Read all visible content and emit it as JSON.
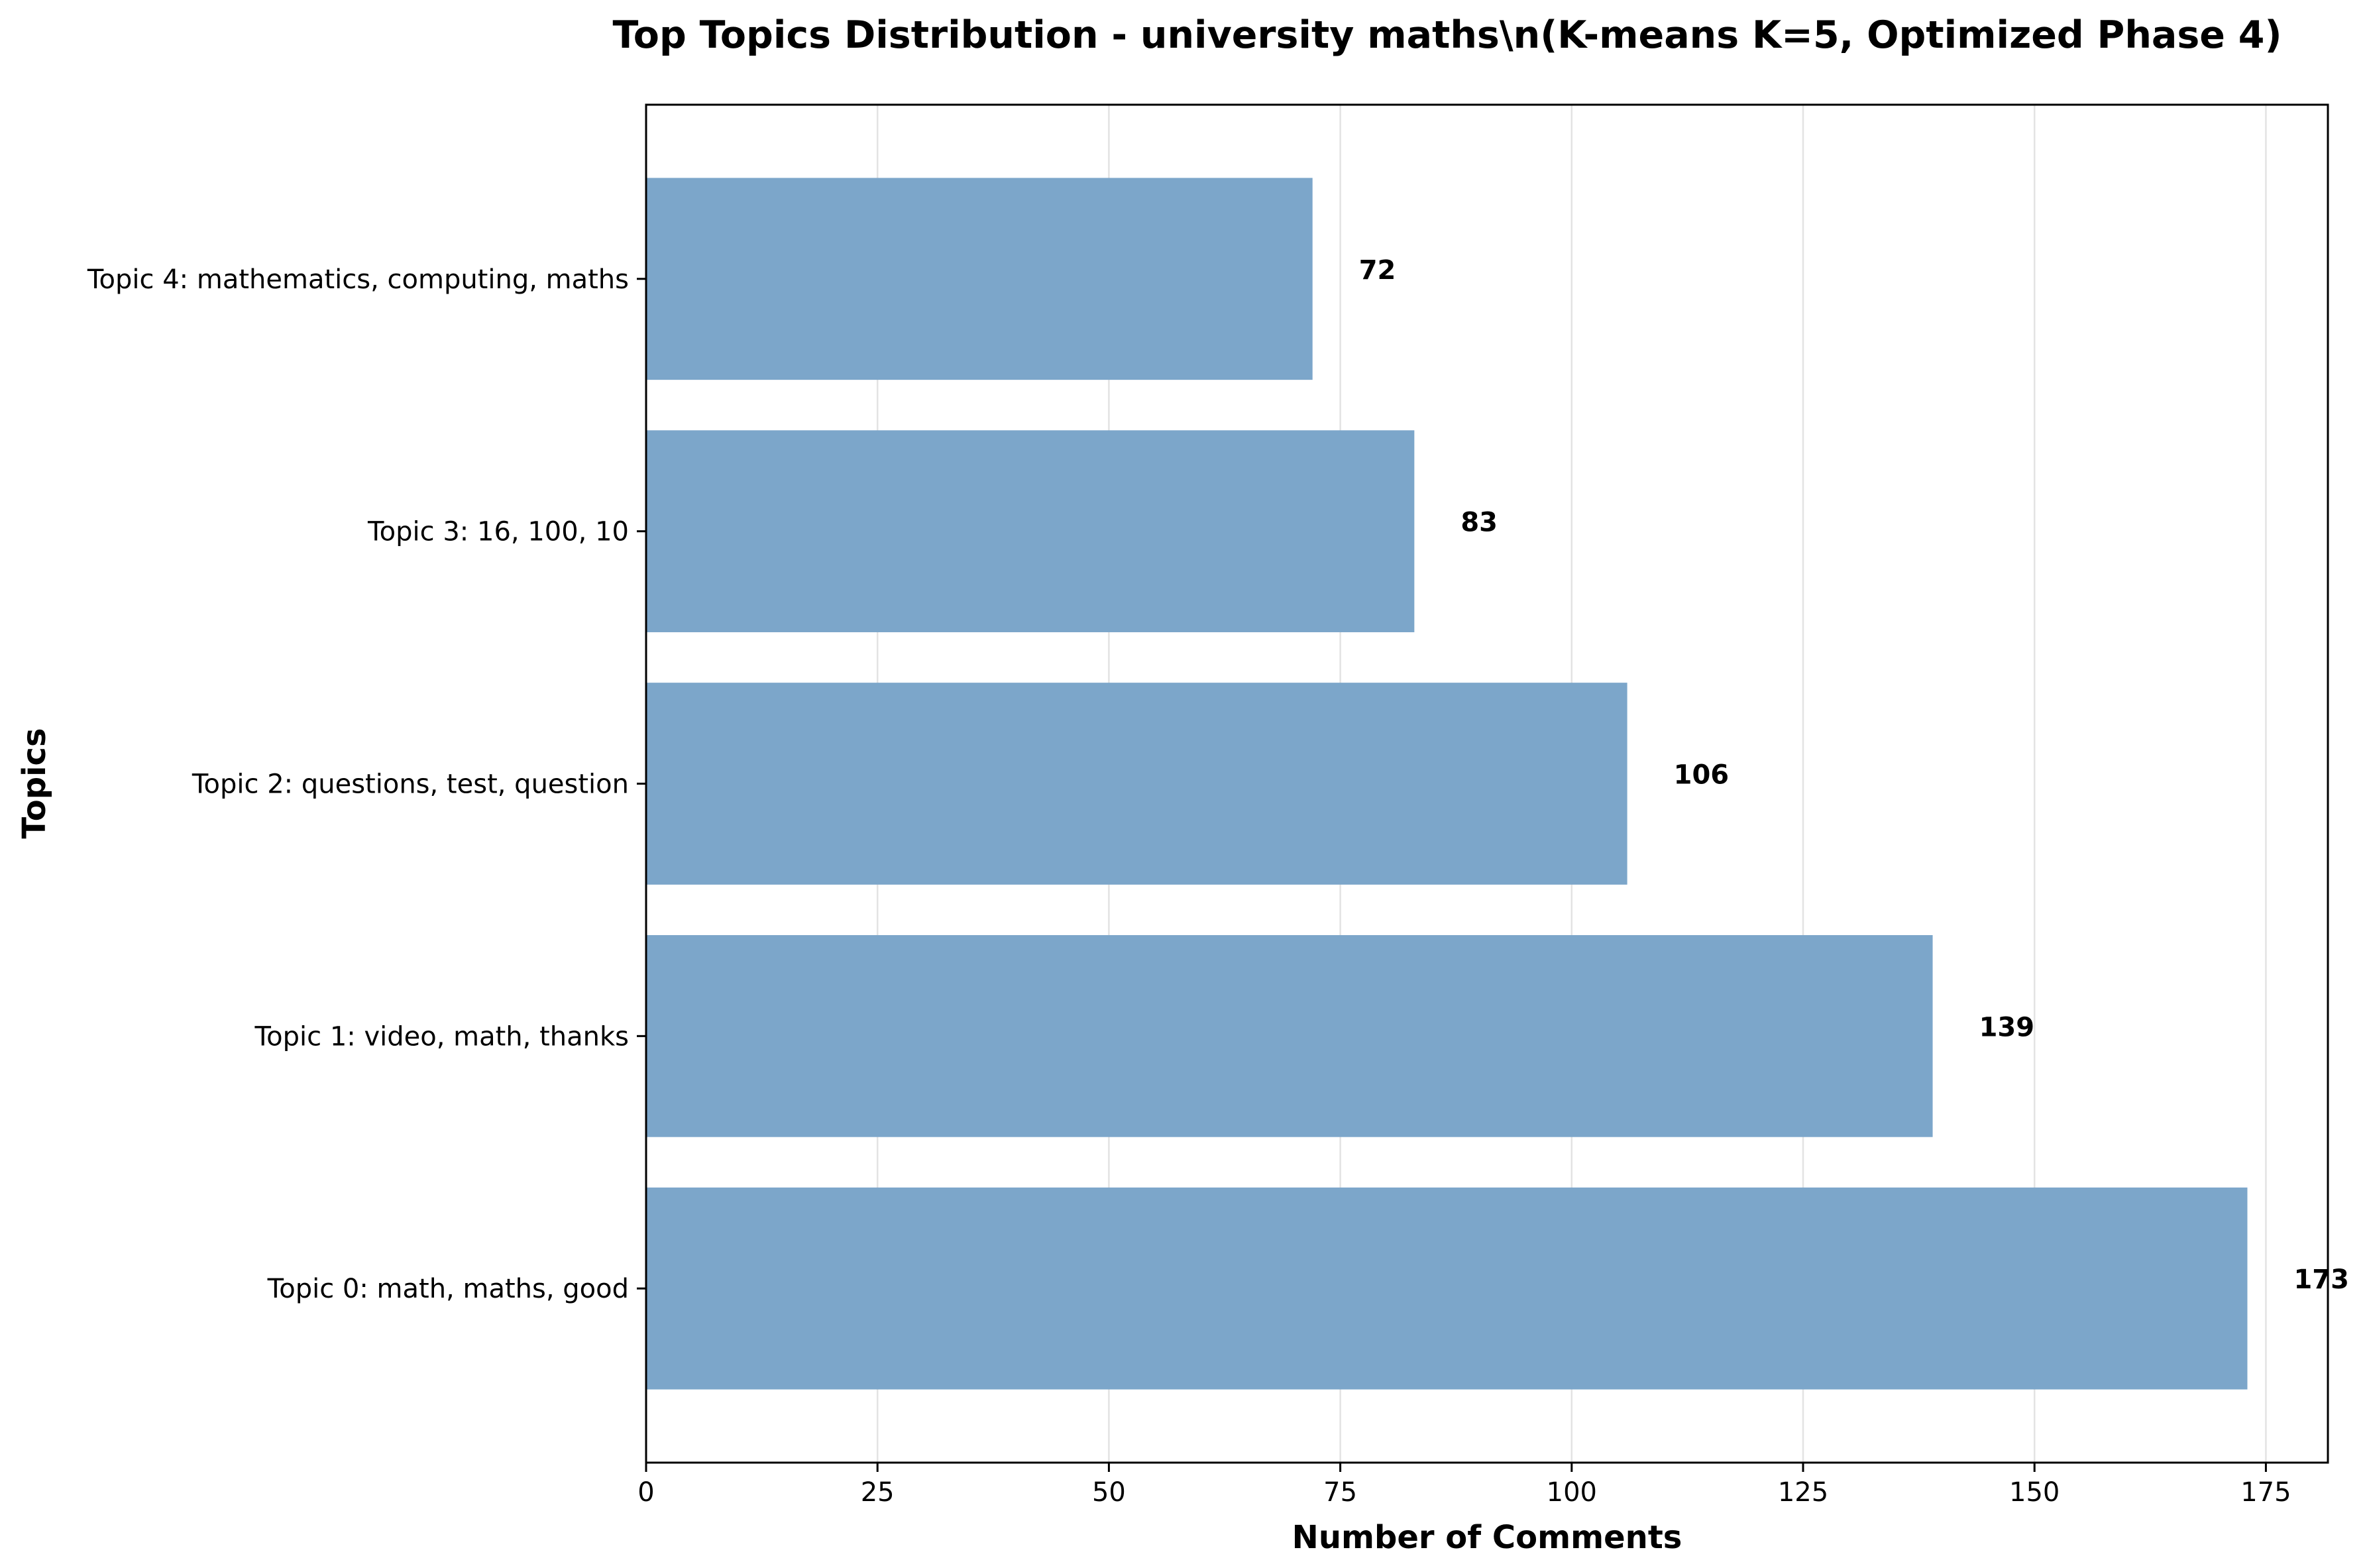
{
  "chart_data": {
    "type": "bar",
    "orientation": "horizontal",
    "title": "Top Topics Distribution - university maths\\n(K-means K=5, Optimized Phase 4)",
    "xlabel": "Number of Comments",
    "ylabel": "Topics",
    "categories": [
      "Topic 0: math, maths, good",
      "Topic 1: video, math, thanks",
      "Topic 2: questions, test, question",
      "Topic 3: 16, 100, 10",
      "Topic 4: mathematics, computing, maths"
    ],
    "values": [
      173,
      139,
      106,
      83,
      72
    ],
    "value_labels": [
      "173",
      "139",
      "106",
      "83",
      "72"
    ],
    "xlim": [
      0,
      181.7
    ],
    "xticks": [
      0,
      25,
      50,
      75,
      100,
      125,
      150,
      175
    ],
    "xtick_labels": [
      "0",
      "25",
      "50",
      "75",
      "100",
      "125",
      "150",
      "175"
    ],
    "grid": "vertical",
    "bar_color": "#7ca6ca",
    "grid_color": "#e3e3e3"
  }
}
